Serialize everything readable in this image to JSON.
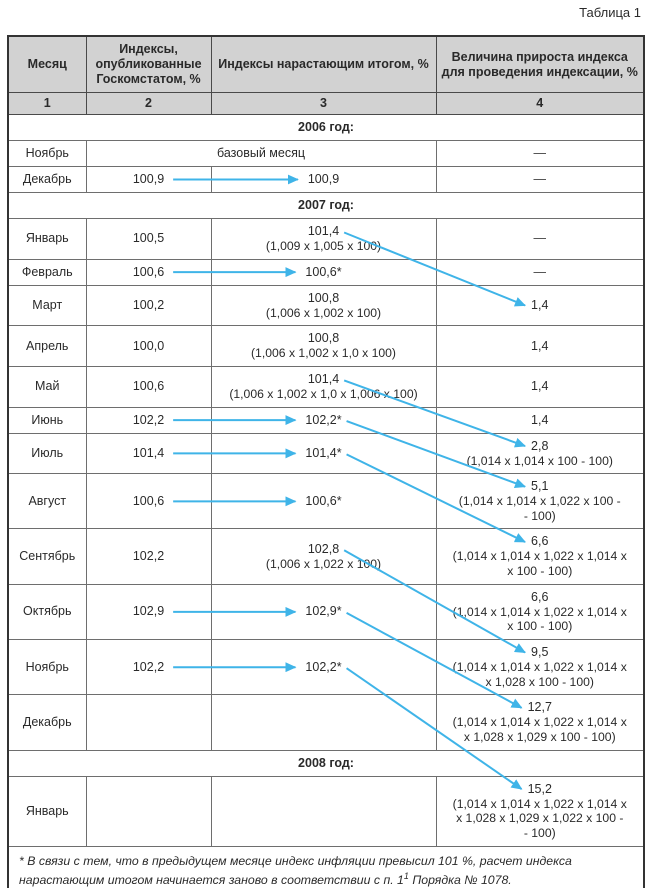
{
  "title": "Таблица 1",
  "colors": {
    "arrow": "#3fb4e8",
    "header_bg": "#d2d2d2",
    "border": "#6e6e6e",
    "text": "#2a2a2a"
  },
  "table": {
    "headers": [
      "Месяц",
      "Индексы, опубликованные Госкомстатом, %",
      "Индексы нарастающим итогом, %",
      "Величина прироста индекса для проведения индексации, %"
    ],
    "column_numbers": [
      "1",
      "2",
      "3",
      "4"
    ],
    "rows": [
      {
        "id": "sec2006",
        "type": "section",
        "label": "2006 год:"
      },
      {
        "id": "nov06",
        "type": "data",
        "month": "Ноябрь",
        "merged": "базовый месяц",
        "col4": "—"
      },
      {
        "id": "dec06",
        "type": "data",
        "month": "Декабрь",
        "col2": "100,9",
        "col3": "100,9",
        "col4": "—"
      },
      {
        "id": "sec2007",
        "type": "section",
        "label": "2007 год:"
      },
      {
        "id": "jan07",
        "type": "data",
        "month": "Январь",
        "col2": "100,5",
        "col3": "101,4",
        "col3_formula": [
          "(1,009 x 1,005 x 100)"
        ],
        "col4": "—"
      },
      {
        "id": "feb07",
        "type": "data",
        "month": "Февраль",
        "col2": "100,6",
        "col3": "100,6*",
        "col4": "—"
      },
      {
        "id": "mar07",
        "type": "data",
        "month": "Март",
        "col2": "100,2",
        "col3": "100,8",
        "col3_formula": [
          "(1,006 x 1,002 x 100)"
        ],
        "col4": "1,4"
      },
      {
        "id": "apr07",
        "type": "data",
        "month": "Апрель",
        "col2": "100,0",
        "col3": "100,8",
        "col3_formula": [
          "(1,006 x 1,002 x 1,0 x 100)"
        ],
        "col4": "1,4"
      },
      {
        "id": "may07",
        "type": "data",
        "month": "Май",
        "col2": "100,6",
        "col3": "101,4",
        "col3_formula": [
          "(1,006 x 1,002 x 1,0 x 1,006 x 100)"
        ],
        "col4": "1,4"
      },
      {
        "id": "jun07",
        "type": "data",
        "month": "Июнь",
        "col2": "102,2",
        "col3": "102,2*",
        "col4": "1,4"
      },
      {
        "id": "jul07",
        "type": "data",
        "month": "Июль",
        "col2": "101,4",
        "col3": "101,4*",
        "col4": "2,8",
        "col4_formula": [
          "(1,014 x 1,014 x 100 - 100)"
        ]
      },
      {
        "id": "aug07",
        "type": "data",
        "month": "Август",
        "col2": "100,6",
        "col3": "100,6*",
        "col4": "5,1",
        "col4_formula": [
          "(1,014 x 1,014 x 1,022 x 100 -",
          "- 100)"
        ]
      },
      {
        "id": "sep07",
        "type": "data",
        "month": "Сентябрь",
        "col2": "102,2",
        "col3": "102,8",
        "col3_formula": [
          "(1,006 x 1,022 x 100)"
        ],
        "col4": "6,6",
        "col4_formula": [
          "(1,014 x 1,014 x 1,022 x 1,014 x",
          "x 100 - 100)"
        ]
      },
      {
        "id": "oct07",
        "type": "data",
        "month": "Октябрь",
        "col2": "102,9",
        "col3": "102,9*",
        "col4": "6,6",
        "col4_formula": [
          "(1,014 x 1,014 x 1,022 x 1,014 x",
          "x 100 - 100)"
        ]
      },
      {
        "id": "nov07",
        "type": "data",
        "month": "Ноябрь",
        "col2": "102,2",
        "col3": "102,2*",
        "col4": "9,5",
        "col4_formula": [
          "(1,014 x 1,014 x 1,022 x 1,014 x",
          "x 1,028 x 100 - 100)"
        ]
      },
      {
        "id": "dec07",
        "type": "data",
        "month": "Декабрь",
        "col2": "",
        "col3": "",
        "col4": "12,7",
        "col4_formula": [
          "(1,014 x 1,014 x 1,022 x 1,014 x",
          "x 1,028 x 1,029 x 100 - 100)"
        ]
      },
      {
        "id": "sec2008",
        "type": "section",
        "label": "2008 год:"
      },
      {
        "id": "jan08",
        "type": "data",
        "month": "Январь",
        "col2": "",
        "col3": "",
        "col4": "15,2",
        "col4_formula": [
          "(1,014 x 1,014 x 1,022 x 1,014 x",
          "x 1,028 x 1,029 x 1,022 x 100 -",
          "- 100)"
        ]
      }
    ],
    "footnote": {
      "before_sup": "* В связи с тем, что в предыдущем месяце индекс инфляции превысил 101 %, расчет индекса нарастающим итогом начинается заново в соответствии с п. 1",
      "sup": "1",
      "after_sup": " Порядка № 1078."
    }
  },
  "arrows": {
    "horizontal_rows": [
      "dec06",
      "feb07",
      "jun07",
      "jul07",
      "aug07",
      "oct07",
      "nov07"
    ],
    "diagonal": [
      {
        "from": "jan07",
        "to": "mar07"
      },
      {
        "from": "may07",
        "to": "jul07"
      },
      {
        "from": "jun07",
        "to": "aug07"
      },
      {
        "from": "jul07",
        "to": "sep07"
      },
      {
        "from": "sep07",
        "to": "nov07"
      },
      {
        "from": "oct07",
        "to": "dec07"
      },
      {
        "from": "nov07",
        "to": "jan08"
      }
    ]
  }
}
